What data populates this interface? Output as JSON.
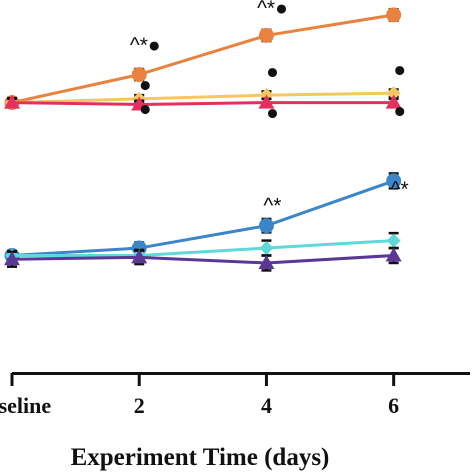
{
  "chart_data": {
    "type": "line",
    "xlabel": "Experiment Time (days)",
    "categories": [
      "Baseline",
      "2",
      "4",
      "6"
    ],
    "x": [
      0,
      2,
      4,
      6
    ],
    "xlim": [
      0,
      7.2
    ],
    "ylim": [
      0,
      100
    ],
    "grid": false,
    "legend": "none",
    "series": [
      {
        "color": "#e8823e",
        "marker": "circle",
        "values": [
          72.5,
          80.0,
          90.5,
          96.0
        ],
        "errors": [
          1.2,
          1.5,
          1.5,
          1.5
        ]
      },
      {
        "color": "#f6c75c",
        "marker": "diamond",
        "values": [
          72.5,
          73.5,
          74.5,
          75.0
        ],
        "errors": [
          1.2,
          1.0,
          1.0,
          1.0
        ]
      },
      {
        "color": "#e4305e",
        "marker": "triangle",
        "values": [
          72.5,
          72.0,
          72.5,
          72.5
        ],
        "errors": [
          1.0,
          1.0,
          1.0,
          1.0
        ]
      },
      {
        "color": "#3a86c8",
        "marker": "circle",
        "values": [
          31.5,
          33.5,
          39.5,
          51.5
        ],
        "errors": [
          1.2,
          1.5,
          1.8,
          2.0
        ]
      },
      {
        "color": "#5ed8d8",
        "marker": "diamond",
        "values": [
          31.5,
          31.5,
          33.5,
          35.5
        ],
        "errors": [
          1.2,
          1.5,
          2.0,
          2.0
        ]
      },
      {
        "color": "#5b3796",
        "marker": "triangle",
        "values": [
          30.5,
          31.0,
          29.5,
          31.5
        ],
        "errors": [
          2.0,
          1.8,
          2.0,
          2.0
        ]
      }
    ],
    "annotations": [
      {
        "x": 2,
        "y": 86.0,
        "text": "^*●"
      },
      {
        "x": 4,
        "y": 96.0,
        "text": "^*●"
      },
      {
        "x": 6,
        "y": 102.5,
        "text": "^*●"
      },
      {
        "x": 2,
        "y": 75.5,
        "text": "●"
      },
      {
        "x": 4,
        "y": 79.0,
        "text": "●"
      },
      {
        "x": 6,
        "y": 79.5,
        "text": "●"
      },
      {
        "x": 2,
        "y": 69.0,
        "text": "●"
      },
      {
        "x": 4,
        "y": 68.0,
        "text": "●"
      },
      {
        "x": 6,
        "y": 68.5,
        "text": "●"
      },
      {
        "x": 4,
        "y": 43.0,
        "text": "^*"
      },
      {
        "x": 6,
        "y": 47.5,
        "text": "^*"
      }
    ]
  }
}
